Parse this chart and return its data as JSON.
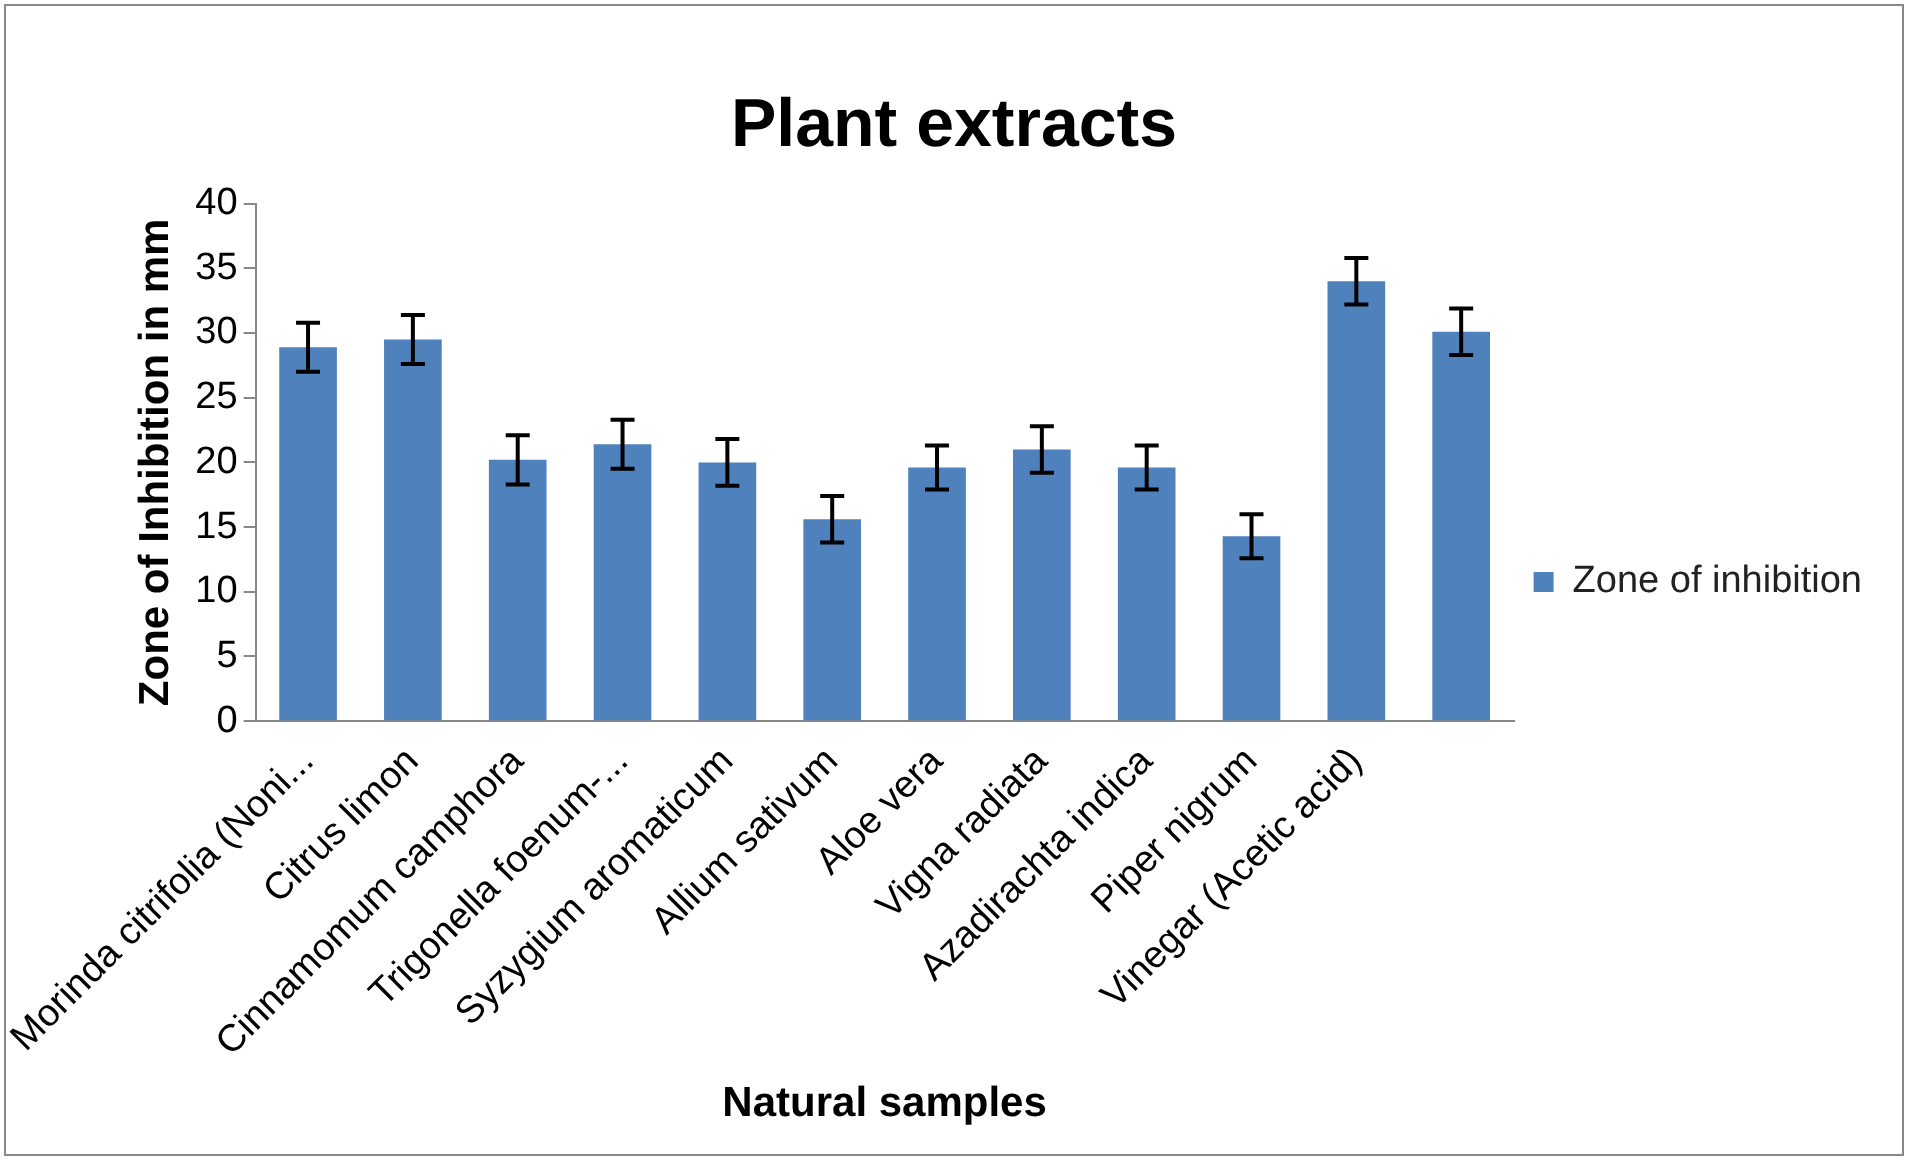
{
  "chart_data": {
    "type": "bar",
    "title": "Plant extracts",
    "xlabel": "Natural samples",
    "ylabel": "Zone of Inhibition in mm",
    "categories": [
      "Morinda citrifolia (Noni...",
      "Citrus limon",
      "Cinnamomum camphora",
      "Trigonella foenum-...",
      "Syzygium aromaticum",
      "Allium sativum",
      "Aloe vera",
      "Vigna radiata",
      "Azadirachta indica",
      "Piper nigrum",
      "Vinegar (Acetic acid)",
      null
    ],
    "series": [
      {
        "name": "Zone of inhibition",
        "color": "#4f81bd",
        "values": [
          28.9,
          29.5,
          20.2,
          21.4,
          20,
          15.6,
          19.6,
          21,
          19.6,
          14.3,
          34,
          30.1
        ],
        "errors": [
          1.9,
          1.9,
          1.9,
          1.9,
          1.8,
          1.8,
          1.7,
          1.8,
          1.7,
          1.7,
          1.8,
          1.8
        ]
      }
    ],
    "ylim": [
      0,
      40
    ],
    "yticks": [
      0,
      5,
      10,
      15,
      20,
      25,
      30,
      35,
      40
    ],
    "grid": false,
    "legend": "right"
  }
}
